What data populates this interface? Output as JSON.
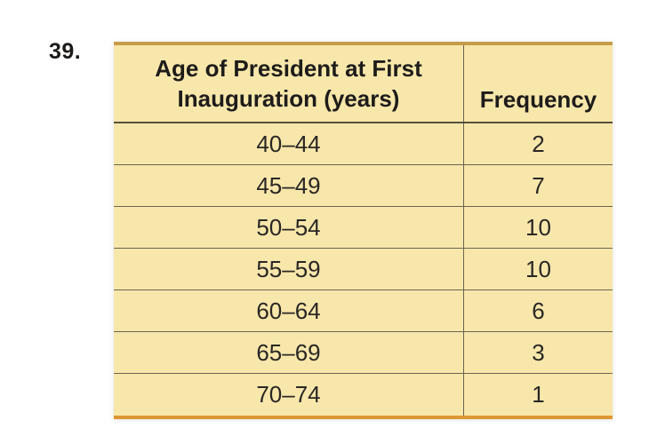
{
  "problem_number": "39.",
  "table": {
    "header": {
      "age_line1": "Age of President at First",
      "age_line2": "Inauguration (years)",
      "frequency": "Frequency"
    },
    "rows": [
      {
        "age": "40–44",
        "frequency": "2"
      },
      {
        "age": "45–49",
        "frequency": "7"
      },
      {
        "age": "50–54",
        "frequency": "10"
      },
      {
        "age": "55–59",
        "frequency": "10"
      },
      {
        "age": "60–64",
        "frequency": "6"
      },
      {
        "age": "65–69",
        "frequency": "3"
      },
      {
        "age": "70–74",
        "frequency": "1"
      }
    ]
  },
  "colors": {
    "table_fill": "#f8e7ab",
    "top_border": "#c69c49",
    "bottom_border": "#de9733",
    "grid_line": "#6b6550",
    "header_underline": "#55503c",
    "text": "#1e1c1a"
  },
  "chart_data": {
    "type": "table",
    "title": "Age of President at First Inauguration (years)",
    "columns": [
      "Age of President at First Inauguration (years)",
      "Frequency"
    ],
    "categories": [
      "40–44",
      "45–49",
      "50–54",
      "55–59",
      "60–64",
      "65–69",
      "70–74"
    ],
    "values": [
      2,
      7,
      10,
      10,
      6,
      3,
      1
    ]
  }
}
